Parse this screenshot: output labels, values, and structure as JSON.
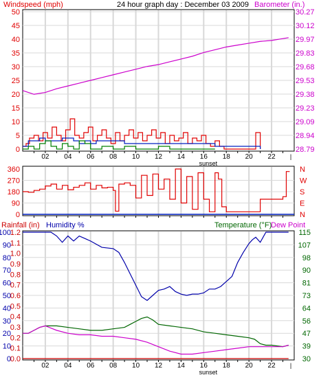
{
  "header": {
    "left_label": "Windspeed (mph)",
    "title": "24 hour graph day : December 03 2009",
    "right_label": "Barometer (in.)"
  },
  "colors": {
    "wind_avg": "#e00000",
    "wind_gust": "#0020c0",
    "wind_low": "#008000",
    "barometer": "#cc00cc",
    "direction": "#e00000",
    "rain": "#cc0000",
    "humidity": "#0000aa",
    "temperature": "#006600",
    "dew_point": "#cc00cc",
    "grid": "#d8d8d8",
    "axis": "#000000"
  },
  "x_ticks": [
    "02",
    "04",
    "06",
    "08",
    "10",
    "12",
    "14",
    "16",
    "18",
    "20",
    "22"
  ],
  "sunset_label": "sunset",
  "chart_data": [
    {
      "type": "line",
      "name": "wind_barometer",
      "y_left_ticks": [
        "0",
        "5",
        "10",
        "15",
        "20",
        "25",
        "30",
        "35",
        "40",
        "45",
        "50"
      ],
      "y_left_range": [
        0,
        50
      ],
      "y_right_ticks": [
        "28.79",
        "28.94",
        "29.09",
        "29.23",
        "29.38",
        "29.53",
        "29.68",
        "29.83",
        "29.97",
        "30.12",
        "30.27"
      ],
      "y_right_range": [
        28.79,
        30.27
      ],
      "x_range_hours": [
        0,
        24
      ],
      "series": [
        {
          "name": "Barometer",
          "axis": "right",
          "x": [
            0,
            1,
            2,
            3,
            4,
            5,
            6,
            7,
            8,
            9,
            10,
            11,
            12,
            13,
            14,
            15,
            16,
            17,
            18,
            19,
            20,
            21,
            22,
            23,
            23.5
          ],
          "values": [
            29.42,
            29.38,
            29.4,
            29.44,
            29.47,
            29.5,
            29.53,
            29.56,
            29.59,
            29.62,
            29.65,
            29.68,
            29.7,
            29.73,
            29.76,
            29.79,
            29.83,
            29.86,
            29.89,
            29.91,
            29.93,
            29.95,
            29.96,
            29.98,
            29.99
          ]
        },
        {
          "name": "Windspeed",
          "axis": "left",
          "x": [
            0,
            0.3,
            0.6,
            1,
            1.4,
            1.8,
            2.2,
            2.6,
            3,
            3.4,
            3.8,
            4.2,
            4.6,
            5,
            5.4,
            5.8,
            6.2,
            6.6,
            7,
            7.4,
            7.8,
            8.2,
            8.6,
            9,
            9.4,
            9.8,
            10.2,
            10.6,
            11,
            11.4,
            11.8,
            12.2,
            12.6,
            13,
            13.4,
            13.8,
            14.2,
            14.6,
            15,
            15.4,
            15.8,
            16.2,
            16.6,
            17,
            17.4,
            17.8,
            18.2,
            20.5,
            20.6,
            21
          ],
          "values": [
            1,
            2,
            4,
            5,
            3,
            6,
            4,
            8,
            5,
            3,
            7,
            11,
            5,
            4,
            6,
            8,
            3,
            5,
            7,
            4,
            2,
            6,
            3,
            5,
            7,
            4,
            6,
            3,
            5,
            7,
            4,
            6,
            2,
            5,
            3,
            4,
            6,
            2,
            4,
            3,
            5,
            2,
            1,
            3,
            1,
            0,
            0,
            0,
            6,
            0
          ]
        },
        {
          "name": "Gust",
          "axis": "left",
          "x": [
            0,
            0.5,
            1,
            1.5,
            2,
            2.5,
            3,
            3.5,
            4,
            4.5,
            5,
            5.5,
            6,
            6.5,
            7,
            7.5,
            8,
            8.5,
            9,
            9.5,
            10,
            11,
            12,
            13,
            14,
            15,
            16,
            17,
            18,
            20,
            20.5,
            21
          ],
          "values": [
            1,
            3,
            3,
            4,
            3,
            3,
            3,
            4,
            4,
            3,
            2,
            3,
            2,
            3,
            3,
            3,
            3,
            3,
            2,
            2,
            2,
            2,
            2,
            2,
            2,
            2,
            2,
            1,
            1,
            1,
            1,
            0
          ]
        },
        {
          "name": "Low",
          "axis": "left",
          "x": [
            0,
            0.5,
            1,
            1.5,
            2,
            2.5,
            3,
            3.5,
            4,
            4.5,
            5,
            5.5,
            6,
            7,
            8,
            9,
            10,
            11,
            12,
            13,
            14,
            15,
            16,
            17
          ],
          "values": [
            0,
            1,
            0,
            2,
            3,
            1,
            0,
            2,
            1,
            0,
            3,
            2,
            0,
            1,
            0,
            1,
            0,
            0,
            1,
            0,
            0,
            0,
            0,
            0
          ]
        }
      ]
    },
    {
      "type": "line",
      "name": "wind_direction",
      "y_left_ticks": [
        "0",
        "90",
        "180",
        "270",
        "360"
      ],
      "y_left_range": [
        0,
        360
      ],
      "y_right_ticks": [
        "N",
        "E",
        "S",
        "W",
        "N"
      ],
      "series": [
        {
          "name": "Direction",
          "x": [
            0,
            0.5,
            1,
            1.5,
            2,
            2.5,
            3,
            3.5,
            4,
            4.5,
            5,
            5.5,
            6,
            6.5,
            7,
            7.5,
            8,
            8.2,
            8.5,
            9,
            9.5,
            10,
            10.5,
            11,
            11.5,
            12,
            12.5,
            13,
            13.5,
            14,
            14.5,
            15,
            15.5,
            16,
            16.5,
            17,
            17.3,
            17.6,
            18,
            19,
            20,
            20.8,
            21,
            22,
            22.5,
            23,
            23.3,
            23.6
          ],
          "values": [
            180,
            175,
            190,
            200,
            225,
            240,
            200,
            230,
            195,
            215,
            230,
            250,
            200,
            230,
            210,
            215,
            190,
            25,
            240,
            250,
            230,
            130,
            310,
            150,
            320,
            200,
            280,
            120,
            360,
            90,
            300,
            40,
            330,
            120,
            20,
            330,
            280,
            60,
            20,
            20,
            20,
            20,
            120,
            120,
            120,
            140,
            340,
            340
          ]
        }
      ]
    },
    {
      "type": "line",
      "name": "rain_humidity_temperature",
      "y_rain_ticks": [
        "0.0",
        "0.1",
        "0.2",
        "0.3",
        "0.4",
        "0.5",
        "0.6",
        "0.7",
        "0.8",
        "0.9",
        "1.0",
        "1.1",
        "1.2"
      ],
      "y_humidity_ticks": [
        "0",
        "10",
        "20",
        "30",
        "40",
        "50",
        "60",
        "70",
        "80",
        "90",
        "100"
      ],
      "y_right_ticks": [
        "30",
        "39",
        "47",
        "56",
        "64",
        "73",
        "81",
        "90",
        "98",
        "107",
        "115"
      ],
      "y_right_range": [
        30,
        115
      ],
      "series": [
        {
          "name": "Humidity",
          "axis": "humidity",
          "x": [
            0,
            2.5,
            3,
            3.5,
            4,
            4.5,
            5,
            5.5,
            6,
            7,
            8,
            8.5,
            9,
            9.5,
            10,
            10.5,
            11,
            11.5,
            12,
            12.5,
            13,
            13.5,
            14,
            14.5,
            15,
            15.5,
            16,
            16.5,
            17,
            17.5,
            18,
            18.5,
            19,
            19.5,
            20,
            20.3,
            20.6,
            21,
            21.5,
            23.5
          ],
          "values": [
            100,
            100,
            97,
            92,
            97,
            93,
            97,
            95,
            93,
            88,
            87,
            84,
            76,
            67,
            58,
            49,
            46,
            50,
            54,
            55,
            57,
            53,
            51,
            50,
            51,
            51,
            52,
            55,
            55,
            57,
            61,
            65,
            76,
            84,
            91,
            94,
            96,
            92,
            100,
            100
          ]
        },
        {
          "name": "Temperature",
          "axis": "right",
          "x": [
            0,
            0.5,
            1,
            1.5,
            2,
            3,
            4,
            5,
            6,
            7,
            8,
            9,
            9.5,
            10,
            10.5,
            11,
            11.5,
            12,
            13,
            14,
            15,
            16,
            17,
            18,
            19,
            20,
            20.5,
            21,
            21.5,
            22,
            23,
            23.5
          ],
          "values": [
            47,
            47,
            49,
            51,
            52,
            52,
            51,
            50,
            49,
            49,
            50,
            51,
            53,
            55,
            57,
            58,
            56,
            53,
            52,
            51,
            50,
            48,
            47,
            46,
            45,
            44,
            43,
            40,
            39,
            39,
            38,
            39
          ]
        },
        {
          "name": "Dew Point",
          "axis": "right",
          "x": [
            0,
            0.5,
            1,
            1.5,
            2,
            3,
            4,
            5,
            6,
            7,
            8,
            9,
            10,
            11,
            12,
            13,
            14,
            15,
            16,
            17,
            18,
            19,
            20,
            21,
            22,
            23,
            23.5
          ],
          "values": [
            47,
            47,
            49,
            51,
            52,
            49,
            47,
            46,
            46,
            45,
            45,
            44,
            43,
            41,
            38,
            35,
            33,
            33,
            34,
            35,
            36,
            37,
            38,
            38,
            38,
            38,
            39
          ]
        },
        {
          "name": "Rainfall",
          "axis": "rain",
          "x": [
            0,
            23.5
          ],
          "values": [
            0,
            0
          ]
        }
      ]
    }
  ],
  "panel3": {
    "rain_label": "Rainfall (in)",
    "humidity_label": "Humidity %",
    "temperature_label": "Temperature (°F)",
    "dew_label": "Dew Point"
  }
}
